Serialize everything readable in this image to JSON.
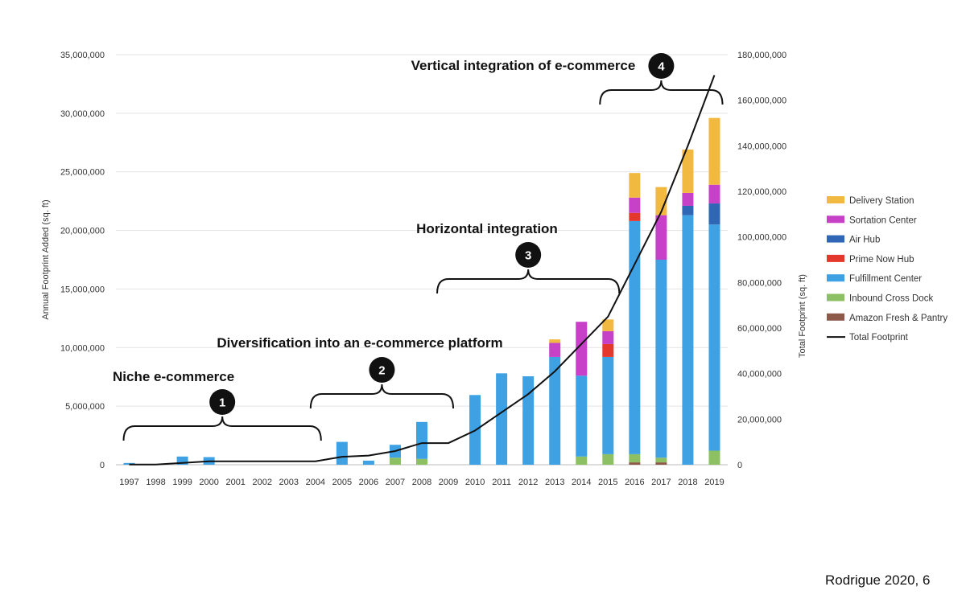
{
  "citation": "Rodrigue 2020, 6",
  "chart_data": {
    "type": "bar",
    "stacked": true,
    "title": "",
    "xlabel": "",
    "ylabel": "Annual Footprint Added  (sq. ft)",
    "y2label": "Total Footprint (sq. ft)",
    "ylim": [
      0,
      35000000
    ],
    "y2lim": [
      0,
      180000000
    ],
    "yticks": [
      "0",
      "5,000,000",
      "10,000,000",
      "15,000,000",
      "20,000,000",
      "25,000,000",
      "30,000,000",
      "35,000,000"
    ],
    "y2ticks": [
      "0",
      "20,000,000",
      "40,000,000",
      "60,000,000",
      "80,000,000",
      "100,000,000",
      "120,000,000",
      "140,000,000",
      "160,000,000",
      "180,000,000"
    ],
    "grid": true,
    "legend_position": "right",
    "categories": [
      "1997",
      "1998",
      "1999",
      "2000",
      "2001",
      "2002",
      "2003",
      "2004",
      "2005",
      "2006",
      "2007",
      "2008",
      "2009",
      "2010",
      "2011",
      "2012",
      "2013",
      "2014",
      "2015",
      "2016",
      "2017",
      "2018",
      "2019"
    ],
    "series": [
      {
        "name": "Amazon Fresh & Pantry",
        "color": "#8d5a4a",
        "values": [
          0,
          0,
          0,
          0,
          0,
          0,
          0,
          0,
          0,
          0,
          0,
          0,
          0,
          0,
          0,
          0,
          0,
          0,
          0,
          200000,
          200000,
          0,
          0
        ]
      },
      {
        "name": "Inbound Cross Dock",
        "color": "#8cc063",
        "values": [
          0,
          0,
          0,
          0,
          0,
          0,
          0,
          0,
          0,
          0,
          600000,
          500000,
          0,
          0,
          0,
          0,
          0,
          700000,
          900000,
          700000,
          400000,
          0,
          1200000
        ]
      },
      {
        "name": "Fulfillment Center",
        "color": "#3ea1e3",
        "values": [
          150000,
          0,
          700000,
          650000,
          0,
          0,
          0,
          0,
          1950000,
          350000,
          1100000,
          3150000,
          0,
          5950000,
          7800000,
          7550000,
          9200000,
          6900000,
          8300000,
          19900000,
          16900000,
          21300000,
          19300000
        ]
      },
      {
        "name": "Prime Now Hub",
        "color": "#e5382c",
        "values": [
          0,
          0,
          0,
          0,
          0,
          0,
          0,
          0,
          0,
          0,
          0,
          0,
          0,
          0,
          0,
          0,
          0,
          0,
          1100000,
          700000,
          0,
          0,
          0
        ]
      },
      {
        "name": "Air Hub",
        "color": "#2f66b5",
        "values": [
          0,
          0,
          0,
          0,
          0,
          0,
          0,
          0,
          0,
          0,
          0,
          0,
          0,
          0,
          0,
          0,
          0,
          0,
          0,
          0,
          0,
          800000,
          1800000
        ]
      },
      {
        "name": "Sortation Center",
        "color": "#c640c8",
        "values": [
          0,
          0,
          0,
          0,
          0,
          0,
          0,
          0,
          0,
          0,
          0,
          0,
          0,
          0,
          0,
          0,
          1200000,
          4600000,
          1100000,
          1300000,
          3800000,
          1100000,
          1600000
        ]
      },
      {
        "name": "Delivery Station",
        "color": "#f2b941",
        "values": [
          0,
          0,
          0,
          0,
          0,
          0,
          0,
          0,
          0,
          0,
          0,
          0,
          0,
          0,
          0,
          0,
          300000,
          0,
          1000000,
          2100000,
          2400000,
          3700000,
          5700000
        ]
      }
    ],
    "line": {
      "name": "Total Footprint",
      "color": "#111111",
      "axis": "right",
      "values": [
        100000,
        100000,
        800000,
        1500000,
        1500000,
        1500000,
        1500000,
        1500000,
        3500000,
        4000000,
        6000000,
        9500000,
        9500000,
        15000000,
        23000000,
        31000000,
        41000000,
        53000000,
        65000000,
        88000000,
        111000000,
        140000000,
        171000000
      ]
    },
    "annotations": [
      {
        "number": "1",
        "label": "Niche e-commerce",
        "from": "1997",
        "to": "2004"
      },
      {
        "number": "2",
        "label": "Diversification into an e-commerce platform",
        "from": "2004",
        "to": "2009"
      },
      {
        "number": "3",
        "label": "Horizontal integration",
        "from": "2009",
        "to": "2015"
      },
      {
        "number": "4",
        "label": "Vertical integration of e-commerce",
        "from": "2015",
        "to": "2019"
      }
    ]
  }
}
